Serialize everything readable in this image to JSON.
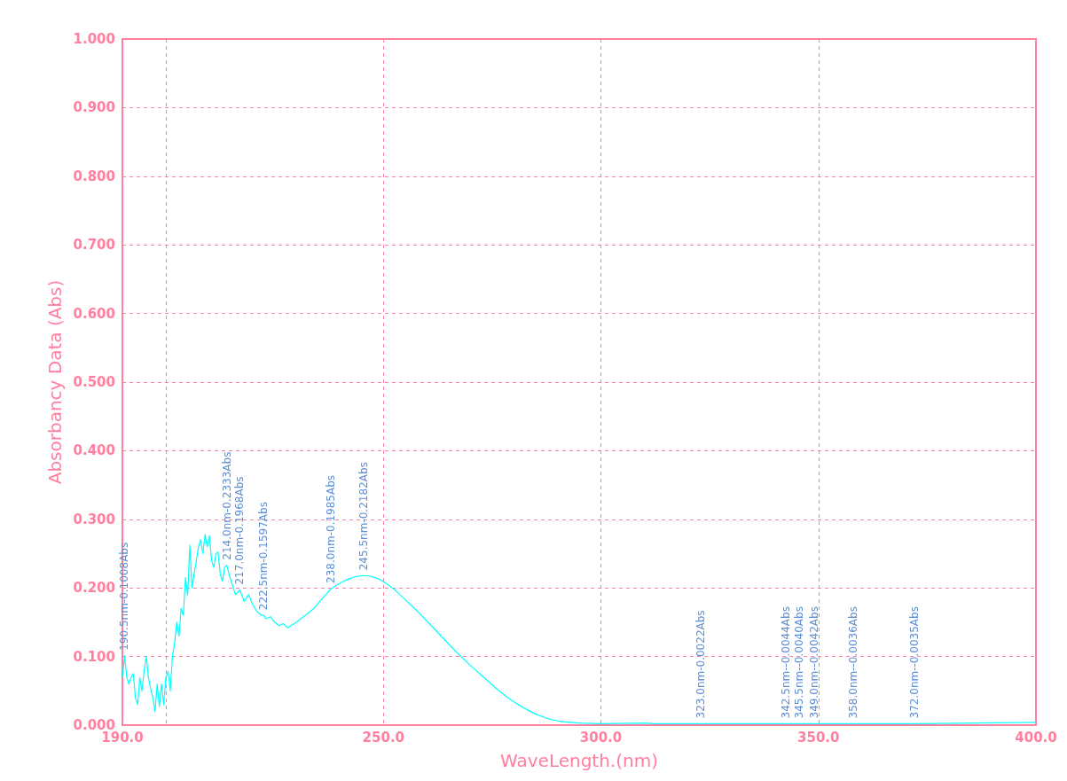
{
  "chart_data": {
    "type": "line",
    "xlabel": "WaveLength.(nm)",
    "ylabel": "Absorbancy Data (Abs)",
    "xlim": [
      190,
      400
    ],
    "xticks": [
      {
        "value": 190,
        "label": "190.0"
      },
      {
        "value": 200,
        "label": null
      },
      {
        "value": 250,
        "label": "250.0"
      },
      {
        "value": 300,
        "label": "300.0"
      },
      {
        "value": 350,
        "label": "350.0"
      },
      {
        "value": 400,
        "label": "400.0"
      }
    ],
    "ylim": [
      0,
      1
    ],
    "yticks": [
      {
        "value": 0,
        "label": "0.000"
      },
      {
        "value": 0.1,
        "label": "0.100"
      },
      {
        "value": 0.2,
        "label": "0.200"
      },
      {
        "value": 0.3,
        "label": "0.300"
      },
      {
        "value": 0.4,
        "label": "0.400"
      },
      {
        "value": 0.5,
        "label": "0.500"
      },
      {
        "value": 0.6,
        "label": "0.600"
      },
      {
        "value": 0.7,
        "label": "0.700"
      },
      {
        "value": 0.8,
        "label": "0.800"
      },
      {
        "value": 0.9,
        "label": "0.900"
      },
      {
        "value": 1,
        "label": "1.000"
      }
    ],
    "grid": true,
    "marker": "none",
    "line_style": "solid",
    "series": [
      {
        "color": "#00ffff",
        "x": [
          190,
          190.5,
          191,
          191.5,
          192,
          192.5,
          193,
          193.5,
          194,
          194.5,
          195,
          195.5,
          196,
          196.5,
          197,
          197.5,
          198,
          198.5,
          199,
          199.5,
          200,
          200.5,
          201,
          201.5,
          202,
          202.5,
          203,
          203.5,
          204,
          204.5,
          205,
          205.5,
          206,
          206.5,
          207,
          207.5,
          208,
          208.5,
          209,
          209.5,
          210,
          210.5,
          211,
          211.5,
          212,
          212.5,
          213,
          213.5,
          214,
          214.5,
          215,
          216,
          217,
          218,
          219,
          220,
          221,
          222,
          222.5,
          223,
          224,
          225,
          226,
          227,
          228,
          229,
          229.5,
          230,
          231,
          232,
          234,
          236,
          238,
          240,
          242,
          244,
          245.5,
          247,
          249,
          251,
          253,
          255,
          258,
          261,
          264,
          267,
          270,
          273,
          276,
          279,
          282,
          285,
          288,
          291,
          295,
          300,
          310,
          312,
          323,
          330,
          342.5,
          345.5,
          349,
          358,
          372,
          400
        ],
        "values": [
          0.07,
          0.101,
          0.07,
          0.06,
          0.07,
          0.075,
          0.04,
          0.03,
          0.069,
          0.05,
          0.08,
          0.1,
          0.069,
          0.053,
          0.04,
          0.02,
          0.06,
          0.027,
          0.06,
          0.03,
          0.07,
          0.078,
          0.05,
          0.1,
          0.12,
          0.15,
          0.13,
          0.17,
          0.16,
          0.215,
          0.19,
          0.262,
          0.2,
          0.221,
          0.24,
          0.26,
          0.27,
          0.25,
          0.278,
          0.26,
          0.276,
          0.24,
          0.23,
          0.25,
          0.252,
          0.22,
          0.21,
          0.23,
          0.233,
          0.22,
          0.21,
          0.19,
          0.197,
          0.18,
          0.19,
          0.175,
          0.165,
          0.16,
          0.16,
          0.155,
          0.158,
          0.15,
          0.145,
          0.148,
          0.142,
          0.146,
          0.148,
          0.15,
          0.155,
          0.16,
          0.17,
          0.185,
          0.199,
          0.207,
          0.213,
          0.217,
          0.218,
          0.217,
          0.213,
          0.205,
          0.195,
          0.183,
          0.165,
          0.145,
          0.125,
          0.105,
          0.087,
          0.07,
          0.053,
          0.038,
          0.026,
          0.016,
          0.009,
          0.005,
          0.003,
          0.002,
          0.003,
          0.002,
          0.002,
          0.002,
          0.002,
          0.002,
          0.002,
          0.002,
          0.002,
          0.004
        ]
      }
    ],
    "annotations": [
      {
        "text": "190.5nm-0.1008Abs",
        "x": 190.5,
        "y": 0.101
      },
      {
        "text": "214.0nm-0.2333Abs",
        "x": 214,
        "y": 0.233
      },
      {
        "text": "217.0nm-0.1968Abs",
        "x": 217,
        "y": 0.197
      },
      {
        "text": "222.5nm-0.1597Abs",
        "x": 222.5,
        "y": 0.16
      },
      {
        "text": "238.0nm-0.1985Abs",
        "x": 238,
        "y": 0.199
      },
      {
        "text": "245.5nm-0.2182Abs",
        "x": 245.5,
        "y": 0.218
      },
      {
        "text": "323.0nm-0.0022Abs",
        "x": 323,
        "y": 0.002
      },
      {
        "text": "342.5nm--0.0044Abs",
        "x": 342.5,
        "y": 0.002
      },
      {
        "text": "345.5nm--0.0040Abs",
        "x": 345.5,
        "y": 0.002
      },
      {
        "text": "349.0nm--0.0042Abs",
        "x": 349,
        "y": 0.002
      },
      {
        "text": "358.0nm--0.0036Abs",
        "x": 358,
        "y": 0.002
      },
      {
        "text": "372.0nm--0.0035Abs",
        "x": 372,
        "y": 0.002
      }
    ]
  }
}
